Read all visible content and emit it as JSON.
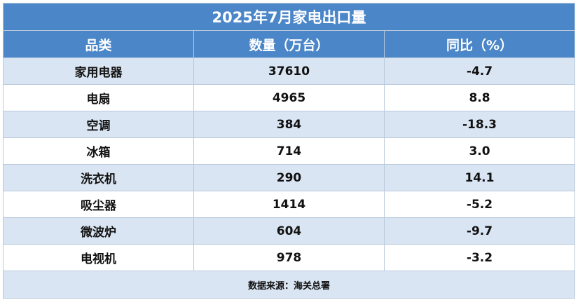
{
  "title": "2025年7月家电出口量",
  "headers": [
    "品类",
    "数量（万台）",
    "同比（%）"
  ],
  "rows": [
    {
      "category": "家用电器",
      "quantity": "37610",
      "yoy": "-4.7"
    },
    {
      "category": "电扇",
      "quantity": "4965",
      "yoy": "8.8"
    },
    {
      "category": "空调",
      "quantity": "384",
      "yoy": "-18.3"
    },
    {
      "category": "冰箱",
      "quantity": "714",
      "yoy": "3.0"
    },
    {
      "category": "洗衣机",
      "quantity": "290",
      "yoy": "14.1"
    },
    {
      "category": "吸尘器",
      "quantity": "1414",
      "yoy": "-5.2"
    },
    {
      "category": "微波炉",
      "quantity": "604",
      "yoy": "-9.7"
    },
    {
      "category": "电视机",
      "quantity": "978",
      "yoy": "-3.2"
    }
  ],
  "source": "数据来源：海关总署",
  "colors": {
    "header_bg": "#4a86c8",
    "stripe": "#dae5f3",
    "header_text": "#ffffff"
  }
}
